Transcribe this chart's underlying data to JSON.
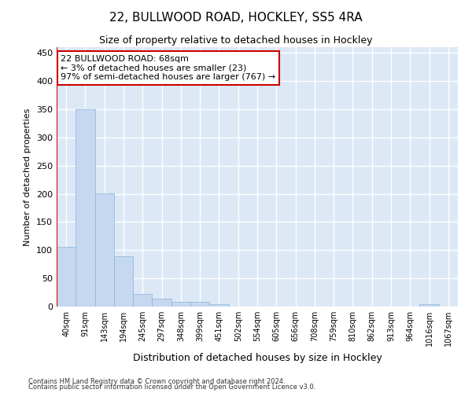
{
  "title": "22, BULLWOOD ROAD, HOCKLEY, SS5 4RA",
  "subtitle": "Size of property relative to detached houses in Hockley",
  "xlabel": "Distribution of detached houses by size in Hockley",
  "ylabel": "Number of detached properties",
  "bar_labels": [
    "40sqm",
    "91sqm",
    "143sqm",
    "194sqm",
    "245sqm",
    "297sqm",
    "348sqm",
    "399sqm",
    "451sqm",
    "502sqm",
    "554sqm",
    "605sqm",
    "656sqm",
    "708sqm",
    "759sqm",
    "810sqm",
    "862sqm",
    "913sqm",
    "964sqm",
    "1016sqm",
    "1067sqm"
  ],
  "bar_values": [
    106,
    350,
    201,
    89,
    23,
    14,
    9,
    8,
    4,
    0,
    0,
    0,
    0,
    0,
    0,
    0,
    0,
    0,
    0,
    4,
    0
  ],
  "bar_color": "#c5d8f0",
  "bar_edge_color": "#8ab4d8",
  "background_color": "#dce8f5",
  "grid_color": "#ffffff",
  "annotation_text": "22 BULLWOOD ROAD: 68sqm\n← 3% of detached houses are smaller (23)\n97% of semi-detached houses are larger (767) →",
  "annotation_box_color": "#ffffff",
  "annotation_box_edge_color": "#cc0000",
  "marker_color": "#cc0000",
  "ylim": [
    0,
    460
  ],
  "yticks": [
    0,
    50,
    100,
    150,
    200,
    250,
    300,
    350,
    400,
    450
  ],
  "footer_line1": "Contains HM Land Registry data © Crown copyright and database right 2024.",
  "footer_line2": "Contains public sector information licensed under the Open Government Licence v3.0."
}
